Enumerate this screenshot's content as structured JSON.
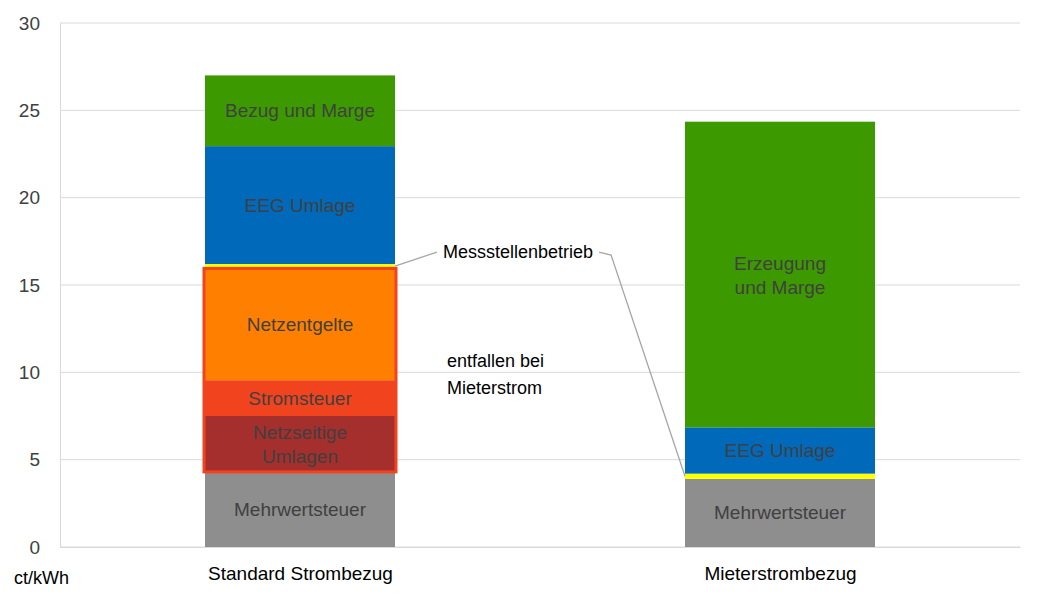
{
  "chart_data": {
    "type": "bar",
    "stacked": true,
    "categories": [
      "Standard Strombezug",
      "Mieterstrombezug"
    ],
    "series": [
      {
        "name": "Mehrwertsteuer",
        "color": "#8e8e8e",
        "values": [
          4.3,
          3.9
        ]
      },
      {
        "name": "Netzseitige Umlagen",
        "color": "#a52f2c",
        "values": [
          3.2,
          0
        ]
      },
      {
        "name": "Stromsteuer",
        "color": "#f2431f",
        "values": [
          2.05,
          0
        ]
      },
      {
        "name": "Netzentgelte",
        "color": "#ff8000",
        "values": [
          6.4,
          0
        ]
      },
      {
        "name": "Messstellenbetrieb",
        "color": "#ffff00",
        "values": [
          0.25,
          0.3
        ]
      },
      {
        "name": "EEG Umlage",
        "color": "#0069b9",
        "values": [
          6.75,
          2.65
        ]
      },
      {
        "name": "Bezug und Marge",
        "color": "#3c9a00",
        "values": [
          4.05,
          0
        ]
      },
      {
        "name": "Erzeugung und Marge",
        "color": "#3c9a00",
        "values": [
          0,
          17.5
        ]
      }
    ],
    "y_label": "ct/kWh",
    "ylim": [
      0,
      30
    ],
    "yticks": [
      0,
      5,
      10,
      15,
      20,
      25,
      30
    ],
    "grid": true,
    "annotations": [
      {
        "text": [
          "entfallen bei",
          "Mieterstrom"
        ]
      }
    ]
  }
}
